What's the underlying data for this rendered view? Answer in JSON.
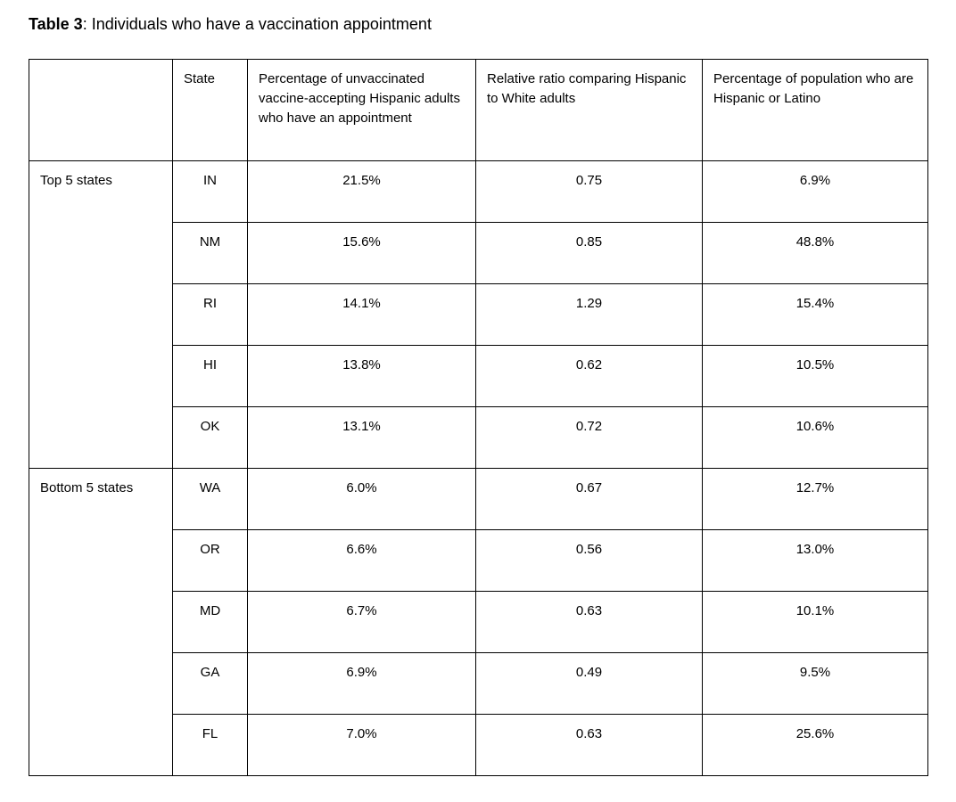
{
  "title": {
    "label": "Table 3",
    "caption": ": Individuals who have a vaccination appointment"
  },
  "table": {
    "headers": {
      "group": "",
      "state": "State",
      "pct_appointment": "Percentage of unvaccinated vaccine-accepting Hispanic adults who have an appointment",
      "relative_ratio": "Relative ratio comparing Hispanic to White adults",
      "pct_population": "Percentage of population who are Hispanic or Latino"
    },
    "groups": [
      {
        "label": "Top 5 states",
        "rows": [
          {
            "state": "IN",
            "pct_appointment": "21.5%",
            "relative_ratio": "0.75",
            "pct_population": "6.9%"
          },
          {
            "state": "NM",
            "pct_appointment": "15.6%",
            "relative_ratio": "0.85",
            "pct_population": "48.8%"
          },
          {
            "state": "RI",
            "pct_appointment": "14.1%",
            "relative_ratio": "1.29",
            "pct_population": "15.4%"
          },
          {
            "state": "HI",
            "pct_appointment": "13.8%",
            "relative_ratio": "0.62",
            "pct_population": "10.5%"
          },
          {
            "state": "OK",
            "pct_appointment": "13.1%",
            "relative_ratio": "0.72",
            "pct_population": "10.6%"
          }
        ]
      },
      {
        "label": "Bottom 5 states",
        "rows": [
          {
            "state": "WA",
            "pct_appointment": "6.0%",
            "relative_ratio": "0.67",
            "pct_population": "12.7%"
          },
          {
            "state": "OR",
            "pct_appointment": "6.6%",
            "relative_ratio": "0.56",
            "pct_population": "13.0%"
          },
          {
            "state": "MD",
            "pct_appointment": "6.7%",
            "relative_ratio": "0.63",
            "pct_population": "10.1%"
          },
          {
            "state": "GA",
            "pct_appointment": "6.9%",
            "relative_ratio": "0.49",
            "pct_population": "9.5%"
          },
          {
            "state": "FL",
            "pct_appointment": "7.0%",
            "relative_ratio": "0.63",
            "pct_population": "25.6%"
          }
        ]
      }
    ]
  },
  "colors": {
    "border": "#000000",
    "text": "#000000",
    "background": "#ffffff"
  }
}
